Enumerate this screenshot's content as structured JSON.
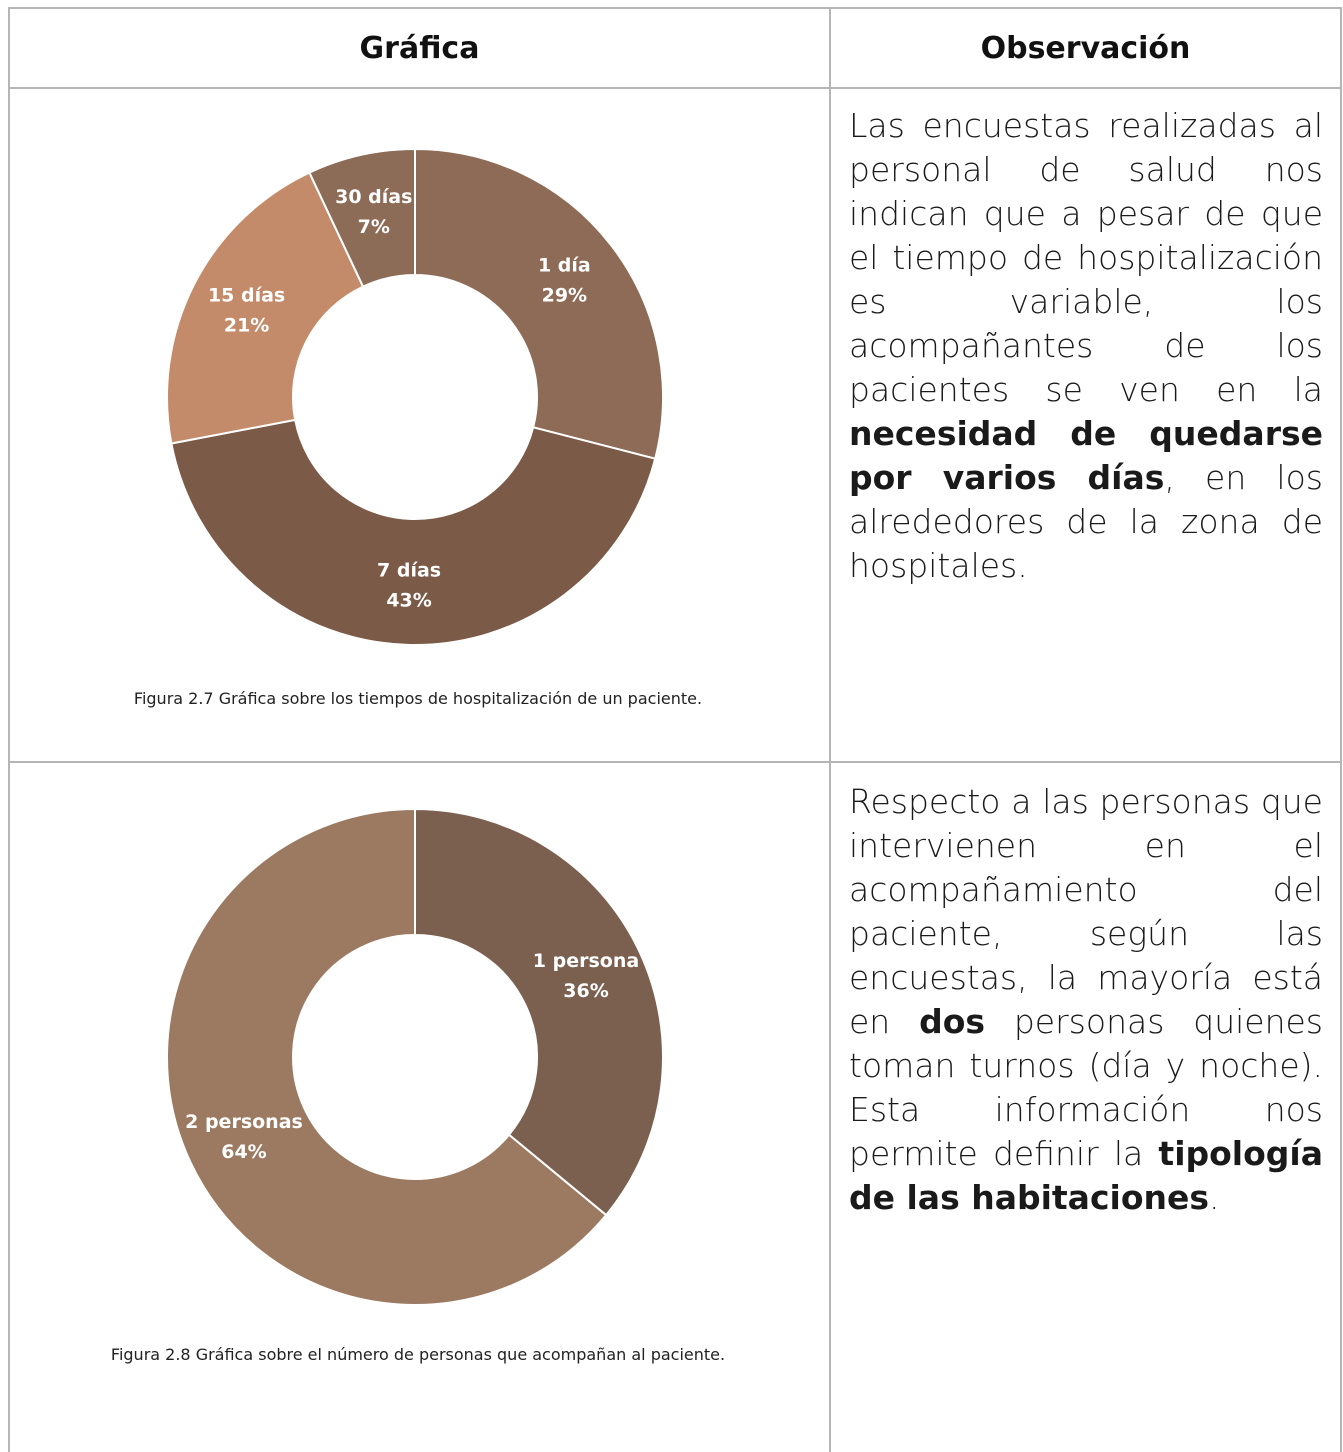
{
  "table": {
    "headers": [
      "Gráfica",
      "Observación"
    ],
    "rows": [
      {
        "chart": {
          "type": "pie",
          "donut": true,
          "categories": [
            "1 día",
            "7 días",
            "15 días",
            "30 días"
          ],
          "values": [
            29,
            43,
            21,
            7
          ],
          "value_labels": [
            "29%",
            "43%",
            "21%",
            "7%"
          ],
          "colors": [
            "#8e6b56",
            "#7b5a47",
            "#c48b6b",
            "#8c6b57"
          ]
        },
        "caption": "Figura 2.7 Gráfica sobre los tiempos de hospitalización de un paciente.",
        "observation": [
          {
            "text": "Las encuestas realizadas al personal de salud nos indican que a pesar de que el tiempo de hospitalización es variable, los acompañantes de los pacientes se ven en la ",
            "bold": false
          },
          {
            "text": "necesidad de quedarse por varios días",
            "bold": true
          },
          {
            "text": ", en los alrededores de la zona de hospitales.",
            "bold": false
          }
        ]
      },
      {
        "chart": {
          "type": "pie",
          "donut": true,
          "categories": [
            "1 persona",
            "2 personas"
          ],
          "values": [
            36,
            64
          ],
          "value_labels": [
            "36%",
            "64%"
          ],
          "colors": [
            "#7b6050",
            "#9c7a61"
          ]
        },
        "caption": "Figura 2.8 Gráfica sobre el número de personas que acompañan al paciente.",
        "observation": [
          {
            "text": "Respecto a las personas que intervienen en el acompañamiento del paciente, según las encuestas, la mayoría está en ",
            "bold": false
          },
          {
            "text": "dos",
            "bold": true
          },
          {
            "text": " personas quienes toman turnos (día y noche). Esta información nos permite definir la ",
            "bold": false
          },
          {
            "text": "tipología de las habitaciones",
            "bold": true
          },
          {
            "text": ".",
            "bold": false
          }
        ]
      }
    ]
  }
}
